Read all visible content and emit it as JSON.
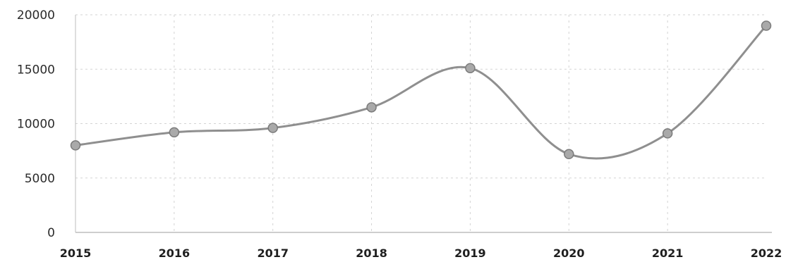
{
  "chart_data": {
    "type": "line",
    "x": [
      "2015",
      "2016",
      "2017",
      "2018",
      "2019",
      "2020",
      "2021",
      "2022"
    ],
    "series": [
      {
        "values": [
          8000,
          9200,
          9600,
          11500,
          15100,
          7200,
          9100,
          19000
        ]
      }
    ],
    "ylim": [
      0,
      20000
    ],
    "yticks": [
      "0",
      "5000",
      "10000",
      "15000",
      "20000"
    ],
    "smooth": true,
    "grid": true,
    "colors": {
      "line": "#8f8f8f",
      "marker_fill": "#a9a9a9",
      "marker_stroke": "#7b7b7b",
      "grid": "#d3d3d3",
      "axis": "#bdbdbd"
    }
  }
}
